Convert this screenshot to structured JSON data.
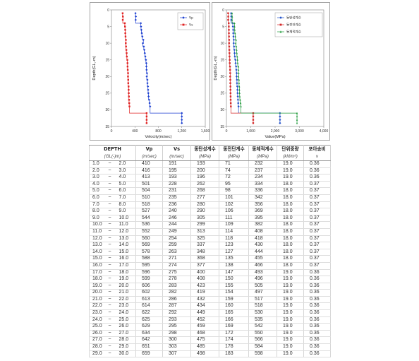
{
  "chart_data": [
    {
      "type": "line",
      "xlabel": "Velocity(m/sec)",
      "ylabel": "Depth(GL,-m)",
      "xlim": [
        0,
        1600
      ],
      "ylim": [
        0,
        35
      ],
      "y_inverted": true,
      "xticks": [
        0,
        400,
        800,
        1200,
        1600
      ],
      "xtick_labels": [
        "0",
        "400",
        "800",
        "1,200",
        "1,600"
      ],
      "yticks": [
        0,
        5,
        10,
        15,
        20,
        25,
        30,
        35
      ],
      "ytick_labels": [
        "0",
        "5",
        "10",
        "15",
        "20",
        "25",
        "30",
        "35"
      ],
      "grid": false,
      "legend": "top-right",
      "depth": [
        1,
        2,
        3,
        4,
        5,
        6,
        7,
        8,
        9,
        10,
        11,
        12,
        13,
        14,
        15,
        16,
        17,
        18,
        19,
        20,
        21,
        22,
        23,
        24,
        25,
        26,
        27,
        28,
        29,
        31,
        32,
        33,
        34
      ],
      "series": [
        {
          "name": "Vp",
          "color": "#1c3fd0",
          "values": [
            410,
            416,
            413,
            501,
            504,
            510,
            518,
            527,
            544,
            536,
            552,
            560,
            569,
            578,
            588,
            595,
            596,
            599,
            606,
            602,
            613,
            614,
            622,
            625,
            629,
            634,
            642,
            651,
            659,
            1200,
            1200,
            1200,
            1200
          ]
        },
        {
          "name": "Vs",
          "color": "#e02222",
          "values": [
            191,
            195,
            193,
            228,
            231,
            235,
            236,
            240,
            246,
            244,
            249,
            254,
            259,
            263,
            271,
            274,
            275,
            278,
            283,
            282,
            286,
            287,
            292,
            293,
            295,
            298,
            300,
            303,
            307,
            600,
            600,
            600,
            600
          ]
        }
      ]
    },
    {
      "type": "line",
      "xlabel": "Value(MPa)",
      "ylabel": "Depth(GL,-m)",
      "xlim": [
        0,
        4000
      ],
      "ylim": [
        0,
        35
      ],
      "y_inverted": true,
      "xticks": [
        0,
        1000,
        2000,
        3000,
        4000
      ],
      "xtick_labels": [
        "0",
        "1,000",
        "2,000",
        "3,000",
        "4,000"
      ],
      "yticks": [
        0,
        5,
        10,
        15,
        20,
        25,
        30,
        35
      ],
      "ytick_labels": [
        "0",
        "5",
        "10",
        "15",
        "20",
        "25",
        "30",
        "35"
      ],
      "grid": false,
      "legend": "top-right",
      "depth": [
        1,
        2,
        3,
        4,
        5,
        6,
        7,
        8,
        9,
        10,
        11,
        12,
        13,
        14,
        15,
        16,
        17,
        18,
        19,
        20,
        21,
        22,
        23,
        24,
        25,
        26,
        27,
        28,
        29,
        31,
        32,
        33,
        34
      ],
      "series": [
        {
          "name": "동탄성계수",
          "color": "#1f4fc8",
          "values": [
            193,
            200,
            196,
            262,
            268,
            277,
            280,
            290,
            305,
            299,
            313,
            325,
            337,
            348,
            368,
            377,
            400,
            408,
            423,
            419,
            432,
            434,
            449,
            452,
            459,
            468,
            475,
            485,
            498,
            2200,
            2200,
            2200,
            2200
          ]
        },
        {
          "name": "동전단계수",
          "color": "#d42a2a",
          "values": [
            71,
            74,
            72,
            95,
            98,
            101,
            102,
            106,
            111,
            109,
            114,
            118,
            123,
            127,
            135,
            138,
            147,
            150,
            155,
            154,
            159,
            160,
            165,
            166,
            169,
            172,
            174,
            178,
            183,
            1100,
            1100,
            1100,
            1100
          ]
        },
        {
          "name": "동체적계수",
          "color": "#1f9a3a",
          "values": [
            232,
            237,
            234,
            334,
            336,
            342,
            356,
            369,
            395,
            382,
            408,
            418,
            430,
            444,
            455,
            466,
            493,
            496,
            505,
            497,
            517,
            518,
            530,
            535,
            542,
            550,
            566,
            584,
            598,
            2900,
            2900,
            2900,
            2900
          ]
        }
      ]
    }
  ],
  "table": {
    "headers": [
      "DEPTH",
      "Vp",
      "Vs",
      "동탄성계수",
      "동전단계수",
      "동체적계수",
      "단위중량",
      "포아송비"
    ],
    "units": [
      "(GL(-)m)",
      "(m/sec)",
      "(m/sec)",
      "(MPa)",
      "(MPa)",
      "(MPa)",
      "(kN/m³)",
      "ν"
    ],
    "rows": [
      [
        "1.0",
        "~",
        "2.0",
        "410",
        "191",
        "193",
        "71",
        "232",
        "19.0",
        "0.36"
      ],
      [
        "2.0",
        "~",
        "3.0",
        "416",
        "195",
        "200",
        "74",
        "237",
        "19.0",
        "0.36"
      ],
      [
        "3.0",
        "~",
        "4.0",
        "413",
        "193",
        "196",
        "72",
        "234",
        "19.0",
        "0.36"
      ],
      [
        "4.0",
        "~",
        "5.0",
        "501",
        "228",
        "262",
        "95",
        "334",
        "18.0",
        "0.37"
      ],
      [
        "5.0",
        "~",
        "6.0",
        "504",
        "231",
        "268",
        "98",
        "336",
        "18.0",
        "0.37"
      ],
      [
        "6.0",
        "~",
        "7.0",
        "510",
        "235",
        "277",
        "101",
        "342",
        "18.0",
        "0.37"
      ],
      [
        "7.0",
        "~",
        "8.0",
        "518",
        "236",
        "280",
        "102",
        "356",
        "18.0",
        "0.37"
      ],
      [
        "8.0",
        "~",
        "9.0",
        "527",
        "240",
        "290",
        "106",
        "369",
        "18.0",
        "0.37"
      ],
      [
        "9.0",
        "~",
        "10.0",
        "544",
        "246",
        "305",
        "111",
        "395",
        "18.0",
        "0.37"
      ],
      [
        "10.0",
        "~",
        "11.0",
        "536",
        "244",
        "299",
        "109",
        "382",
        "18.0",
        "0.37"
      ],
      [
        "11.0",
        "~",
        "12.0",
        "552",
        "249",
        "313",
        "114",
        "408",
        "18.0",
        "0.37"
      ],
      [
        "12.0",
        "~",
        "13.0",
        "560",
        "254",
        "325",
        "118",
        "418",
        "18.0",
        "0.37"
      ],
      [
        "13.0",
        "~",
        "14.0",
        "569",
        "259",
        "337",
        "123",
        "430",
        "18.0",
        "0.37"
      ],
      [
        "14.0",
        "~",
        "15.0",
        "578",
        "263",
        "348",
        "127",
        "444",
        "18.0",
        "0.37"
      ],
      [
        "15.0",
        "~",
        "16.0",
        "588",
        "271",
        "368",
        "135",
        "455",
        "18.0",
        "0.37"
      ],
      [
        "16.0",
        "~",
        "17.0",
        "595",
        "274",
        "377",
        "138",
        "466",
        "18.0",
        "0.37"
      ],
      [
        "17.0",
        "~",
        "18.0",
        "596",
        "275",
        "400",
        "147",
        "493",
        "19.0",
        "0.36"
      ],
      [
        "18.0",
        "~",
        "19.0",
        "599",
        "278",
        "408",
        "150",
        "496",
        "19.0",
        "0.36"
      ],
      [
        "19.0",
        "~",
        "20.0",
        "606",
        "283",
        "423",
        "155",
        "505",
        "19.0",
        "0.36"
      ],
      [
        "20.0",
        "~",
        "21.0",
        "602",
        "282",
        "419",
        "154",
        "497",
        "19.0",
        "0.36"
      ],
      [
        "21.0",
        "~",
        "22.0",
        "613",
        "286",
        "432",
        "159",
        "517",
        "19.0",
        "0.36"
      ],
      [
        "22.0",
        "~",
        "23.0",
        "614",
        "287",
        "434",
        "160",
        "518",
        "19.0",
        "0.36"
      ],
      [
        "23.0",
        "~",
        "24.0",
        "622",
        "292",
        "449",
        "165",
        "530",
        "19.0",
        "0.36"
      ],
      [
        "24.0",
        "~",
        "25.0",
        "625",
        "293",
        "452",
        "166",
        "535",
        "19.0",
        "0.36"
      ],
      [
        "25.0",
        "~",
        "26.0",
        "629",
        "295",
        "459",
        "169",
        "542",
        "19.0",
        "0.36"
      ],
      [
        "26.0",
        "~",
        "27.0",
        "634",
        "298",
        "468",
        "172",
        "550",
        "19.0",
        "0.36"
      ],
      [
        "27.0",
        "~",
        "28.0",
        "642",
        "300",
        "475",
        "174",
        "566",
        "19.0",
        "0.36"
      ],
      [
        "28.0",
        "~",
        "29.0",
        "651",
        "303",
        "485",
        "178",
        "584",
        "19.0",
        "0.36"
      ],
      [
        "29.0",
        "~",
        "30.0",
        "659",
        "307",
        "498",
        "183",
        "598",
        "19.0",
        "0.36"
      ]
    ]
  }
}
